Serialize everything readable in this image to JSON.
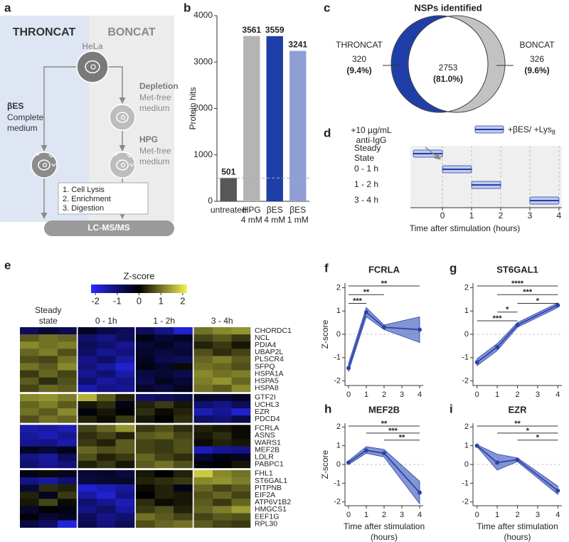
{
  "panel_labels": [
    "a",
    "b",
    "c",
    "d",
    "e",
    "f",
    "g",
    "h",
    "i"
  ],
  "diagram": {
    "left_title": "THRONCAT",
    "right_title": "BONCAT",
    "cell_line": "HeLa",
    "depletion": {
      "title": "Depletion",
      "medium": [
        "Met-free",
        "medium"
      ]
    },
    "left_label": {
      "title": "βES",
      "medium": [
        "Complete",
        "medium"
      ]
    },
    "right_label": {
      "title": "HPG",
      "medium": [
        "Met-free",
        "medium"
      ]
    },
    "steps": [
      "1. Cell Lysis",
      "2. Enrichment",
      "3. Digestion"
    ],
    "readout": "LC-MS/MS"
  },
  "chart_data": [
    {
      "type": "bar",
      "ylabel": "Protein hits",
      "categories": [
        [
          "untreated"
        ],
        [
          "HPG",
          "4 mM"
        ],
        [
          "βES",
          "4 mM"
        ],
        [
          "βES",
          "1 mM"
        ]
      ],
      "values": [
        501,
        3561,
        3559,
        3241
      ],
      "colors": [
        "#575757",
        "#b4b4b4",
        "#1f3fa8",
        "#8f9fd3"
      ],
      "ylim": [
        0,
        4000
      ],
      "yticks": [
        0,
        1000,
        2000,
        3000,
        4000
      ],
      "reference_line": true
    },
    {
      "type": "venn",
      "title": "NSPs identified",
      "sets": [
        {
          "name": "THRONCAT",
          "value": 320,
          "percent": 9.4,
          "percent_label": "(9.4%)",
          "color": "#1f3fa8"
        },
        {
          "value": 2753,
          "percent": 81.0,
          "percent_label": "(81.0%)",
          "color": "#ffffff"
        },
        {
          "name": "BONCAT",
          "value": 326,
          "percent": 9.6,
          "percent_label": "(9.6%)",
          "color": "#c2c2c2"
        }
      ]
    },
    {
      "type": "timeline",
      "annotation": [
        "+10 µg/mL",
        "anti-IgG"
      ],
      "annotation_x": 0,
      "legend": {
        "text": "+βES/ +Lys",
        "subscript": "8"
      },
      "color": "#1f3fa8",
      "rows": [
        {
          "label": [
            "Steady",
            "State"
          ],
          "start": -1,
          "end": 0
        },
        {
          "label": [
            "0 - 1 h"
          ],
          "start": 0,
          "end": 1
        },
        {
          "label": [
            "1 - 2 h"
          ],
          "start": 1,
          "end": 2
        },
        {
          "label": [
            "3 - 4 h"
          ],
          "start": 3,
          "end": 4
        }
      ],
      "xlim": [
        -1.1,
        4.1
      ],
      "xticks": [
        0,
        1,
        2,
        3,
        4
      ],
      "xlabel": "Time after stimulation (hours)",
      "grid": true
    },
    {
      "type": "heatmap",
      "colorbar_title": "Z-score",
      "zlim": [
        -2.2,
        2.2
      ],
      "zticks": [
        -2,
        -1,
        0,
        1,
        2
      ],
      "colormap": [
        "#2a2aff",
        "#12127a",
        "#000000",
        "#7d7d2a",
        "#f4f450"
      ],
      "column_groups": [
        [
          "Steady",
          "state"
        ],
        [
          "0 - 1h"
        ],
        [
          "1 - 2h"
        ],
        [
          "3 - 4h"
        ]
      ],
      "row_groups": [
        {
          "rows": [
            "CHORDC1",
            "NCL",
            "PDIA4",
            "UBAP2L",
            "PLSCR4",
            "SFPQ",
            "HSPA1A",
            "HSPA5",
            "HSPA8"
          ],
          "values": [
            [
              -0.8,
              -0.5,
              -0.7,
              -0.3,
              -0.6,
              -0.8,
              -0.8,
              -1.2,
              -1.8,
              1.0,
              1.2,
              1.3
            ],
            [
              0.8,
              1.0,
              0.9,
              -1.0,
              -1.2,
              -0.8,
              -0.2,
              -0.5,
              -0.3,
              0.6,
              0.8,
              0.5
            ],
            [
              1.2,
              1.0,
              1.1,
              -0.8,
              -1.0,
              -1.3,
              -0.5,
              -0.3,
              -0.6,
              0.3,
              0.5,
              0.2
            ],
            [
              0.9,
              1.1,
              0.7,
              -0.9,
              -1.3,
              -1.1,
              -0.4,
              -0.6,
              -0.5,
              0.7,
              0.4,
              0.6
            ],
            [
              0.7,
              0.6,
              1.0,
              -1.2,
              -0.9,
              -1.4,
              -0.3,
              -0.7,
              -0.8,
              0.9,
              1.1,
              0.8
            ],
            [
              1.0,
              0.8,
              1.2,
              -1.1,
              -1.4,
              -1.8,
              -0.2,
              -0.4,
              0.1,
              1.0,
              0.9,
              0.7
            ],
            [
              0.5,
              0.9,
              0.6,
              -1.3,
              -1.0,
              -1.5,
              -0.6,
              -0.5,
              -0.7,
              1.2,
              1.0,
              1.1
            ],
            [
              0.8,
              0.4,
              0.7,
              -1.0,
              -1.4,
              -1.2,
              -0.7,
              -0.3,
              -0.5,
              1.1,
              1.3,
              0.9
            ],
            [
              0.6,
              0.9,
              0.8,
              -1.5,
              -1.2,
              -1.3,
              -0.4,
              -0.6,
              -0.3,
              1.0,
              0.8,
              1.2
            ]
          ]
        },
        {
          "rows": [
            "GTF2I",
            "UCHL3",
            "EZR",
            "PDCD4"
          ],
          "values": [
            [
              1.2,
              1.3,
              1.1,
              1.6,
              0.8,
              0.3,
              -1.0,
              -0.8,
              -0.6,
              -0.4,
              -0.5,
              -0.3
            ],
            [
              0.9,
              1.1,
              0.8,
              0.2,
              0.4,
              -0.2,
              0.3,
              0.5,
              0.2,
              -1.0,
              -1.2,
              -0.8
            ],
            [
              1.0,
              0.8,
              1.2,
              -0.1,
              0.2,
              0.0,
              0.4,
              0.1,
              0.3,
              -1.6,
              -1.3,
              -1.8
            ],
            [
              0.7,
              1.0,
              0.9,
              0.3,
              0.1,
              0.5,
              0.2,
              0.0,
              0.4,
              -0.9,
              -1.1,
              -0.7
            ]
          ]
        },
        {
          "rows": [
            "FCRLA",
            "ASNS",
            "WARS1",
            "MEF2B",
            "LDLR",
            "PABPC1"
          ],
          "values": [
            [
              -1.5,
              -1.4,
              -1.6,
              0.6,
              0.9,
              1.3,
              0.5,
              0.7,
              0.4,
              0.3,
              0.2,
              0.1
            ],
            [
              -1.4,
              -1.6,
              -1.3,
              0.4,
              0.6,
              0.3,
              0.8,
              0.9,
              0.6,
              0.2,
              0.4,
              0.1
            ],
            [
              -1.3,
              -1.2,
              -1.5,
              0.5,
              0.3,
              0.8,
              0.6,
              0.5,
              0.7,
              0.1,
              0.3,
              0.2
            ],
            [
              -0.3,
              -0.5,
              -0.2,
              0.9,
              0.7,
              0.8,
              0.6,
              0.5,
              0.7,
              -1.6,
              -1.3,
              -1.2
            ],
            [
              -1.2,
              -1.4,
              -0.8,
              0.7,
              0.3,
              0.5,
              0.9,
              0.6,
              0.4,
              -0.5,
              -0.2,
              -0.3
            ],
            [
              -1.0,
              -1.3,
              -1.1,
              0.3,
              0.5,
              0.2,
              0.8,
              1.0,
              0.7,
              -0.1,
              0.0,
              0.2
            ]
          ]
        },
        {
          "rows": [
            "FHL1",
            "ST6GAL1",
            "PITPNB",
            "EIF2A",
            "ATP6V1B2",
            "HMGCS1",
            "EEF1G",
            "RPL30"
          ],
          "values": [
            [
              -0.2,
              0.1,
              -0.3,
              -0.5,
              -0.4,
              -0.6,
              0.2,
              0.0,
              0.3,
              1.8,
              1.2,
              1.0
            ],
            [
              -1.2,
              -1.4,
              -1.0,
              -0.6,
              -0.5,
              -0.4,
              0.3,
              0.4,
              0.5,
              1.2,
              1.3,
              1.1
            ],
            [
              -0.5,
              0.4,
              0.3,
              -1.8,
              -1.6,
              -1.4,
              0.1,
              0.3,
              -0.2,
              0.9,
              0.6,
              0.8
            ],
            [
              0.3,
              -0.3,
              0.5,
              -1.4,
              -1.8,
              -1.2,
              0.0,
              0.3,
              0.2,
              0.7,
              0.9,
              0.6
            ],
            [
              0.2,
              0.6,
              0.1,
              -1.0,
              -1.3,
              -1.6,
              0.4,
              0.1,
              0.2,
              0.8,
              0.5,
              0.9
            ],
            [
              -0.4,
              0.0,
              -0.2,
              -1.2,
              -0.9,
              -1.4,
              0.5,
              0.7,
              0.3,
              0.9,
              1.1,
              1.4
            ],
            [
              -0.1,
              -0.5,
              -0.3,
              -0.8,
              -1.2,
              -1.0,
              1.0,
              0.8,
              0.6,
              0.6,
              0.8,
              0.7
            ],
            [
              -0.6,
              -0.9,
              -1.9,
              -0.7,
              -1.1,
              -0.8,
              0.7,
              0.9,
              1.0,
              0.8,
              0.6,
              0.5
            ]
          ]
        }
      ]
    },
    {
      "type": "line",
      "title": "FCRLA",
      "ylabel": "Z-score",
      "x": [
        0,
        1,
        2,
        4
      ],
      "values": [
        -1.45,
        0.95,
        0.3,
        0.2
      ],
      "lower": [
        -1.6,
        0.75,
        0.2,
        -0.35
      ],
      "upper": [
        -1.25,
        1.15,
        0.4,
        0.75
      ],
      "color": "#2a43a8",
      "band_color": "#6f82cc",
      "xlim": [
        -0.2,
        4.2
      ],
      "xticks": [
        0,
        1,
        2,
        3,
        4
      ],
      "ylim": [
        -2.2,
        2.2
      ],
      "yticks": [
        -2,
        -1,
        0,
        1,
        2
      ],
      "zero_line": true,
      "significance": [
        {
          "from": 0,
          "to": 1,
          "label": "***"
        },
        {
          "from": 0,
          "to": 2,
          "label": "**"
        },
        {
          "from": 0,
          "to": 4,
          "label": "**"
        }
      ]
    },
    {
      "type": "line",
      "title": "ST6GAL1",
      "x": [
        0,
        1,
        2,
        4
      ],
      "values": [
        -1.2,
        -0.55,
        0.4,
        1.25
      ],
      "lower": [
        -1.35,
        -0.7,
        0.3,
        1.15
      ],
      "upper": [
        -1.05,
        -0.4,
        0.5,
        1.35
      ],
      "color": "#2a43a8",
      "band_color": "#6f82cc",
      "xlim": [
        -0.2,
        4.2
      ],
      "xticks": [
        0,
        1,
        2,
        3,
        4
      ],
      "ylim": [
        -2.2,
        2.2
      ],
      "yticks": [
        -2,
        -1,
        0,
        1,
        2
      ],
      "zero_line": true,
      "significance": [
        {
          "from": 0,
          "to": 2,
          "label": "***"
        },
        {
          "from": 1,
          "to": 2,
          "label": "*"
        },
        {
          "from": 2,
          "to": 4,
          "label": "*"
        },
        {
          "from": 1,
          "to": 4,
          "label": "***"
        },
        {
          "from": 0,
          "to": 4,
          "label": "****"
        }
      ]
    },
    {
      "type": "line",
      "title": "MEF2B",
      "ylabel": "Z-score",
      "xlabel": [
        "Time after stimulation",
        "(hours)"
      ],
      "x": [
        0,
        1,
        2,
        4
      ],
      "values": [
        0.1,
        0.75,
        0.6,
        -1.5
      ],
      "lower": [
        0.0,
        0.6,
        0.4,
        -2.1
      ],
      "upper": [
        0.2,
        0.95,
        0.8,
        -0.9
      ],
      "color": "#2a43a8",
      "band_color": "#6f82cc",
      "xlim": [
        -0.2,
        4.2
      ],
      "xticks": [
        0,
        1,
        2,
        3,
        4
      ],
      "ylim": [
        -2.2,
        2.2
      ],
      "yticks": [
        -2,
        -1,
        0,
        1,
        2
      ],
      "zero_line": true,
      "significance": [
        {
          "from": 2,
          "to": 4,
          "label": "**"
        },
        {
          "from": 1,
          "to": 4,
          "label": "***"
        },
        {
          "from": 0,
          "to": 4,
          "label": "**"
        }
      ]
    },
    {
      "type": "line",
      "title": "EZR",
      "xlabel": [
        "Time after stimulation",
        "(hours)"
      ],
      "x": [
        0,
        1,
        2,
        4
      ],
      "values": [
        1.0,
        0.1,
        0.25,
        -1.4
      ],
      "lower": [
        0.95,
        -0.3,
        0.15,
        -1.6
      ],
      "upper": [
        1.05,
        0.55,
        0.35,
        -1.15
      ],
      "color": "#2a43a8",
      "band_color": "#6f82cc",
      "xlim": [
        -0.2,
        4.2
      ],
      "xticks": [
        0,
        1,
        2,
        3,
        4
      ],
      "ylim": [
        -2.2,
        2.2
      ],
      "yticks": [
        -2,
        -1,
        0,
        1,
        2
      ],
      "zero_line": true,
      "significance": [
        {
          "from": 2,
          "to": 4,
          "label": "*"
        },
        {
          "from": 1,
          "to": 4,
          "label": "*"
        },
        {
          "from": 0,
          "to": 4,
          "label": "**"
        }
      ]
    }
  ]
}
